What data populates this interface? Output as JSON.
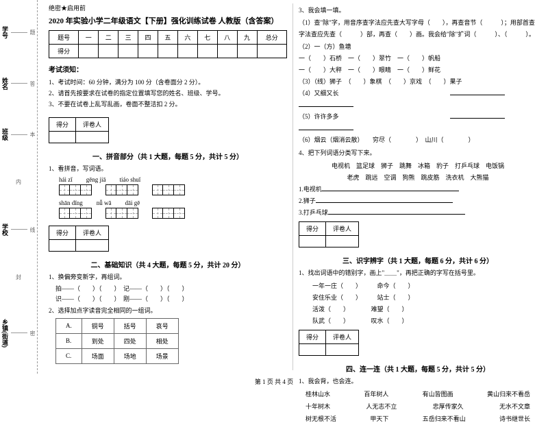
{
  "sidebar": {
    "items": [
      {
        "label": "学号",
        "word": "题"
      },
      {
        "label": "姓名",
        "word": "答"
      },
      {
        "label": "班级",
        "word": "本"
      },
      {
        "label": "",
        "word": "内"
      },
      {
        "label": "学校",
        "word": "线"
      },
      {
        "label": "",
        "word": "封"
      },
      {
        "label": "乡镇(街道)",
        "word": "密"
      }
    ]
  },
  "header": {
    "secret": "绝密★启用前",
    "title": "2020 年实验小学二年级语文【下册】强化训练试卷 人教版（含答案）"
  },
  "scoreTable": {
    "headers": [
      "题号",
      "一",
      "二",
      "三",
      "四",
      "五",
      "六",
      "七",
      "八",
      "九",
      "总分"
    ],
    "row2": "得分"
  },
  "notice": {
    "title": "考试须知：",
    "items": [
      "1、考试时间：60 分钟，满分为 100 分（含卷面分 2 分）。",
      "2、请首先按要求在试卷的指定位置填写您的姓名、班级、学号。",
      "3、不要在试卷上乱写乱画，卷面不整洁扣 2 分。"
    ]
  },
  "gradeBox": {
    "c1": "得分",
    "c2": "评卷人"
  },
  "sec1": {
    "title": "一、拼音部分（共 1 大题，每题 5 分，共计 5 分）",
    "q1": "1、看拼音，写词语。",
    "pinyin": [
      [
        "hái  zǐ",
        "gēng  jiā",
        "tiáo  shuǐ"
      ],
      [
        "shān  dǐng",
        "nǚ  wā",
        "dāi  gē"
      ]
    ]
  },
  "sec2": {
    "title": "二、基础知识（共 4 大题，每题 5 分，共计 20 分）",
    "q1": "1、换偏旁变新字，再组词。",
    "lines": [
      "拍——（　　）（　　）　记——（　　）（　　）",
      "识——（　　）（　　）　刚——（　　）（　　）"
    ],
    "q2": "2、选择加点字读音完全相同的一组词。",
    "abc": [
      [
        "A.",
        "铜号",
        "括号",
        "哀号"
      ],
      [
        "B.",
        "到处",
        "四处",
        "相处"
      ],
      [
        "C.",
        "场面",
        "场地",
        "场景"
      ]
    ]
  },
  "sec3": {
    "q1": "3、我会填一填。",
    "line1": "（1）查\"除\"字，用音序查字法应先查大写字母（　　），再查音节（　　　）；用部首查字法查应先查（　　　）部，再查（　　）画。我会给\"除\"扩词（　　　）、（　　　）。",
    "line2": "（2）一（方）鱼塘",
    "rows": [
      "一（　　）石桥　一（　　）翠竹　一（　　）帆船",
      "一（　　）大秤　一（　　）眼睛　一（　　）鲜花",
      "（3）（线）狮子　（　　）象棋　（　　）京戏　（　　）果子",
      "（4）又细又长　　　　　　　　　　　　　　　　　　",
      "（5）许许多多　　　　　　　　　　　　　　　　　　",
      "（6）烟云（烟消云散）　　穷尽（　　　　）　山川（　　　　）"
    ],
    "q4": "4、把下列词语分类写下来。",
    "words1": "电视机　篮足球　狮子　跳舞　冰箱　豹子　打乒乓球　电饭锅",
    "words2": "老虎　跳远　空调　狗熊　跳皮筋　洗衣机　大熊猫",
    "cats": [
      "1.电视机",
      "2.狮子",
      "3.打乒乓球"
    ]
  },
  "sec4": {
    "title": "三、识字辨字（共 1 大题，每题 6 分，共计 6 分）",
    "q1": "1、找出词语中的错别字，画上\"＿＿\"，再把正确的字写在括号里。",
    "rows": [
      [
        "一年一庄（　　）",
        "命今（　　）"
      ],
      [
        "安住乐业（　　）",
        "站士（　　）"
      ],
      [
        "活泼（　　）",
        "难望（　　）"
      ],
      [
        "队武（　　）",
        "叹水（　　）"
      ]
    ]
  },
  "sec5": {
    "title": "四、连一连（共 1 大题，每题 5 分，共计 5 分）",
    "q1": "1、我会背，也会连。",
    "matches": [
      [
        "桂林山水",
        "百年树人",
        "有山皆图画",
        "黄山归来不看岳"
      ],
      [
        "十年树木",
        "人无志不立",
        "忠厚传家久",
        "无水不文章"
      ],
      [
        "树无根不活",
        "甲天下",
        "五岳归来不看山",
        "诗书继世长"
      ]
    ]
  },
  "footer": "第 1 页 共 4 页"
}
